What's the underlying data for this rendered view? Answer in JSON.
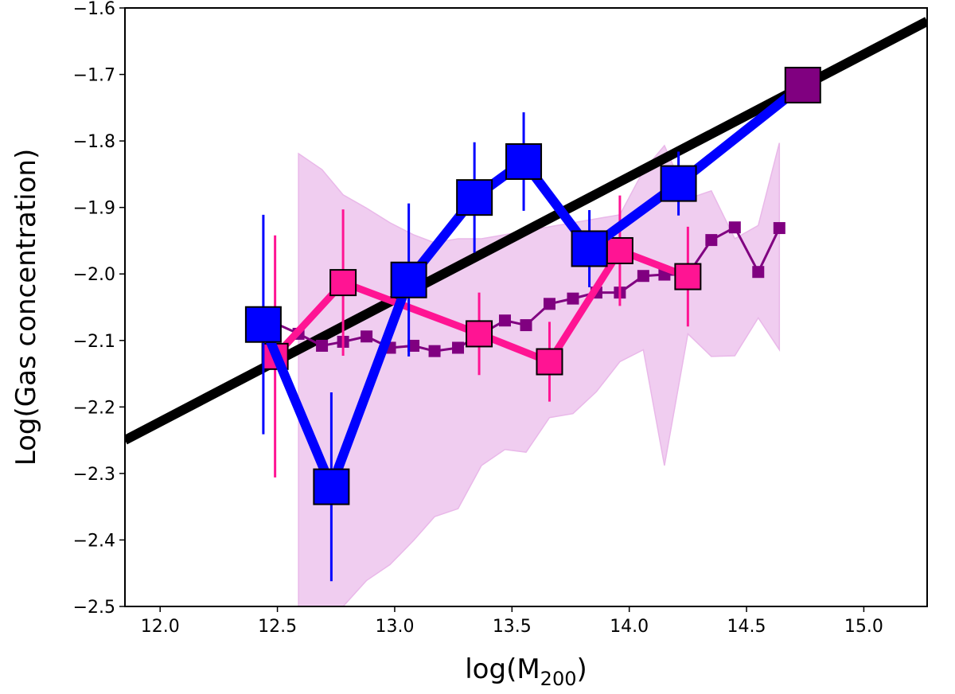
{
  "chart_data": {
    "type": "line",
    "xlabel": [
      "log(M",
      "200",
      ")"
    ],
    "ylabel": "Log(Gas concentration)",
    "xlim": [
      11.85,
      15.27
    ],
    "ylim": [
      -2.5,
      -1.6
    ],
    "xticks": [
      {
        "value": 12,
        "label": "12.0"
      },
      {
        "value": 12.5,
        "label": "12.5"
      },
      {
        "value": 13,
        "label": "13.0"
      },
      {
        "value": 13.5,
        "label": "13.5"
      },
      {
        "value": 14,
        "label": "14.0"
      },
      {
        "value": 14.5,
        "label": "14.5"
      },
      {
        "value": 15,
        "label": "15.0"
      }
    ],
    "yticks": [
      {
        "value": -2.5,
        "label": "−2.5"
      },
      {
        "value": -2.4,
        "label": "−2.4"
      },
      {
        "value": -2.3,
        "label": "−2.3"
      },
      {
        "value": -2.2,
        "label": "−2.2"
      },
      {
        "value": -2.1,
        "label": "−2.1"
      },
      {
        "value": -2.0,
        "label": "−2.0"
      },
      {
        "value": -1.9,
        "label": "−1.9"
      },
      {
        "value": -1.8,
        "label": "−1.8"
      },
      {
        "value": -1.7,
        "label": "−1.7"
      },
      {
        "value": -1.6,
        "label": "−1.6"
      }
    ],
    "band": {
      "color": "#e9b8e9",
      "x": [
        12.59,
        12.69,
        12.78,
        12.88,
        12.98,
        13.08,
        13.17,
        13.27,
        13.37,
        13.47,
        13.56,
        13.66,
        13.76,
        13.86,
        13.96,
        14.06,
        14.15,
        14.25,
        14.35,
        14.45,
        14.55,
        14.64
      ],
      "upper": [
        -1.819,
        -1.843,
        -1.881,
        -1.901,
        -1.923,
        -1.941,
        -1.953,
        -1.947,
        -1.947,
        -1.941,
        -1.935,
        -1.929,
        -1.923,
        -1.917,
        -1.911,
        -1.845,
        -1.807,
        -1.887,
        -1.875,
        -1.947,
        -1.927,
        -1.803
      ],
      "lower": [
        -2.52,
        -2.52,
        -2.5,
        -2.461,
        -2.437,
        -2.401,
        -2.365,
        -2.353,
        -2.288,
        -2.264,
        -2.268,
        -2.216,
        -2.21,
        -2.177,
        -2.132,
        -2.114,
        -2.288,
        -2.09,
        -2.124,
        -2.123,
        -2.066,
        -2.114
      ]
    },
    "series": [
      {
        "color": "#000000",
        "x": [
          11.85,
          15.27
        ],
        "values": [
          -2.25,
          -1.62
        ]
      },
      {
        "color": "#800080",
        "x": [
          12.39,
          12.59,
          12.69,
          12.78,
          12.88,
          12.98,
          13.08,
          13.17,
          13.27,
          13.37,
          13.47,
          13.56,
          13.66,
          13.76,
          13.86,
          13.96,
          14.06,
          14.15,
          14.25,
          14.35,
          14.45,
          14.55,
          14.64
        ],
        "values": [
          -2.058,
          -2.09,
          -2.108,
          -2.102,
          -2.094,
          -2.111,
          -2.108,
          -2.116,
          -2.111,
          -2.09,
          -2.07,
          -2.077,
          -2.045,
          -2.037,
          -2.028,
          -2.028,
          -2.003,
          -2.001,
          -2.001,
          -1.949,
          -1.93,
          -1.997,
          -1.931
        ]
      },
      {
        "color": "#ff1493",
        "x": [
          12.49,
          12.78,
          13.36,
          13.66,
          13.96,
          14.25
        ],
        "values": [
          -2.124,
          -2.013,
          -2.09,
          -2.132,
          -1.965,
          -2.004
        ],
        "errors": [
          0.182,
          0.11,
          0.062,
          0.06,
          0.083,
          0.075
        ]
      },
      {
        "color": "#0000ff",
        "x": [
          12.44,
          12.73,
          13.06,
          13.34,
          13.55,
          13.83,
          14.21,
          14.74
        ],
        "values": [
          -2.076,
          -2.32,
          -2.009,
          -1.885,
          -1.831,
          -1.962,
          -1.864,
          -1.716
        ],
        "errors": [
          0.165,
          0.142,
          0.115,
          0.083,
          0.074,
          0.058,
          0.048,
          null
        ],
        "marker_colors": [
          "#0000ff",
          "#0000ff",
          "#0000ff",
          "#0000ff",
          "#0000ff",
          "#0000ff",
          "#0000ff",
          "#800080"
        ]
      }
    ]
  }
}
